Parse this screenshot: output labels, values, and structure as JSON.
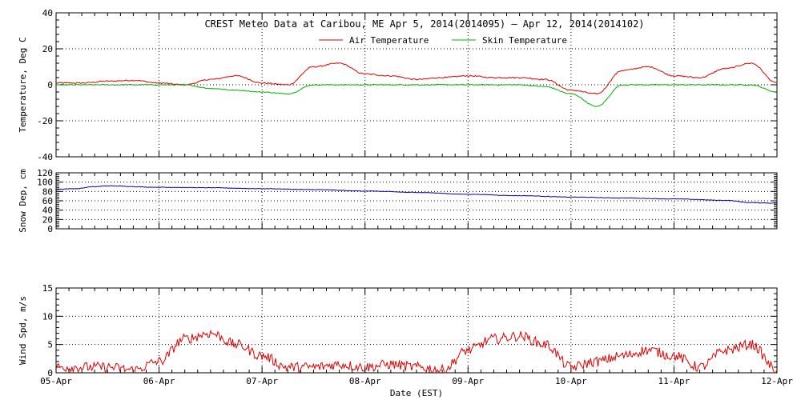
{
  "chart_data": [
    {
      "type": "line",
      "title": "CREST Meteo Data at Caribou, ME   Apr  5, 2014(2014095) — Apr 12, 2014(2014102)",
      "ylabel": "Temperature, Deg C",
      "ylim": [
        -40,
        40
      ],
      "yticks": [
        -40,
        -20,
        0,
        20,
        40
      ],
      "legend_placement": "top-center",
      "grid": true,
      "x_days": [
        0,
        0.25,
        0.5,
        0.75,
        1.0,
        1.25,
        1.5,
        1.75,
        2.0,
        2.25,
        2.5,
        2.75,
        3.0,
        3.25,
        3.5,
        3.75,
        4.0,
        4.25,
        4.5,
        4.75,
        5.0,
        5.25,
        5.5,
        5.75,
        6.0,
        6.25,
        6.5,
        6.75,
        7.0
      ],
      "series": [
        {
          "name": "Air Temperature",
          "color": "#e00000",
          "values": [
            1,
            1,
            2,
            2.5,
            1,
            0,
            3,
            5,
            1,
            0,
            10,
            12,
            6,
            5,
            3,
            4,
            5,
            4,
            4,
            3,
            -3,
            -5,
            8,
            10,
            5,
            4,
            9,
            12,
            1
          ]
        },
        {
          "name": "Skin Temperature",
          "color": "#00b000",
          "values": [
            0,
            0,
            0,
            0,
            0,
            0,
            -2,
            -3,
            -4,
            -5,
            0,
            0,
            0,
            0,
            0,
            0,
            0,
            0,
            0,
            -1,
            -5,
            -12,
            0,
            0,
            0,
            0,
            0,
            0,
            -4
          ]
        }
      ]
    },
    {
      "type": "line",
      "ylabel": "Snow Dep, cm",
      "ylim": [
        0,
        120
      ],
      "yticks": [
        0,
        20,
        40,
        60,
        80,
        100,
        120
      ],
      "grid": true,
      "x_days": [
        0,
        0.2,
        0.35,
        0.5,
        1.0,
        1.5,
        2.0,
        2.5,
        3.0,
        3.5,
        4.0,
        4.5,
        5.0,
        5.5,
        6.0,
        6.5,
        6.75,
        7.0
      ],
      "series": [
        {
          "color": "#0000a0",
          "values": [
            85,
            86,
            90,
            92,
            89,
            88,
            86,
            84,
            81,
            78,
            74,
            71,
            68,
            66,
            64,
            61,
            56,
            55
          ]
        }
      ]
    },
    {
      "type": "line",
      "ylabel": "Wind Spd, m/s",
      "ylim": [
        0,
        15
      ],
      "yticks": [
        0,
        5,
        10,
        15
      ],
      "xlabel": "Date (EST)",
      "xticks": [
        "05-Apr",
        "06-Apr",
        "07-Apr",
        "08-Apr",
        "09-Apr",
        "10-Apr",
        "11-Apr",
        "12-Apr"
      ],
      "grid": true,
      "x_days": [
        0,
        0.25,
        0.5,
        0.75,
        1.0,
        1.25,
        1.5,
        1.75,
        2.0,
        2.25,
        2.5,
        2.75,
        3.0,
        3.25,
        3.5,
        3.75,
        4.0,
        4.25,
        4.5,
        4.75,
        5.0,
        5.25,
        5.5,
        5.75,
        6.0,
        6.25,
        6.5,
        6.75,
        7.0
      ],
      "series": [
        {
          "color": "#e00000",
          "values": [
            1,
            1,
            1,
            0.5,
            2,
            6,
            7,
            5,
            3,
            1,
            1,
            1.5,
            1,
            1.5,
            1,
            0.5,
            4,
            6,
            6.5,
            5,
            1,
            2,
            3,
            4,
            3,
            1,
            4,
            5,
            0.5
          ]
        }
      ]
    }
  ]
}
